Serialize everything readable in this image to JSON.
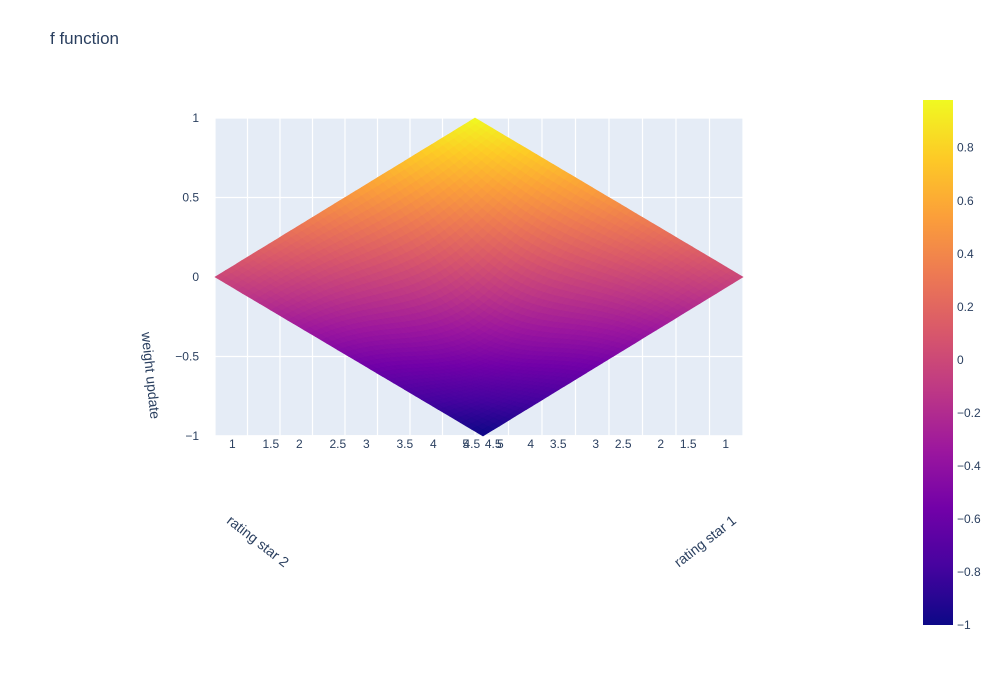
{
  "chart_data": {
    "type": "surface",
    "title": "f function",
    "x_axis_label": "rating star 1",
    "y_axis_label": "rating star 2",
    "z_axis_label": "weight update",
    "x_ticks": [
      "1",
      "1.5",
      "2",
      "2.5",
      "3",
      "3.5",
      "4",
      "4.5",
      "5"
    ],
    "y_ticks": [
      "1",
      "1.5",
      "2",
      "2.5",
      "3",
      "3.5",
      "4",
      "4.5",
      "5"
    ],
    "z_ticks": [
      "1",
      "0.5",
      "0",
      "−0.5",
      "−1"
    ],
    "x_range": [
      1,
      5
    ],
    "y_range": [
      1,
      5
    ],
    "z_range": [
      -1,
      1
    ],
    "colorbar": {
      "ticks": [
        "0.8",
        "0.6",
        "0.4",
        "0.2",
        "0",
        "−0.2",
        "−0.4",
        "−0.6",
        "−0.8",
        "−1"
      ],
      "range": [
        -1,
        1
      ],
      "colorscale": [
        "#0d0887",
        "#46039f",
        "#7201a8",
        "#9c179e",
        "#bd3786",
        "#d8576b",
        "#ed7953",
        "#fb9f3a",
        "#fdca26",
        "#f0f921"
      ]
    },
    "surface_samples": [
      {
        "x": 1,
        "y": 1,
        "z": 1
      },
      {
        "x": 5,
        "y": 1,
        "z": 0
      },
      {
        "x": 1,
        "y": 5,
        "z": 0
      },
      {
        "x": 5,
        "y": 5,
        "z": -1
      }
    ],
    "grid": true
  }
}
